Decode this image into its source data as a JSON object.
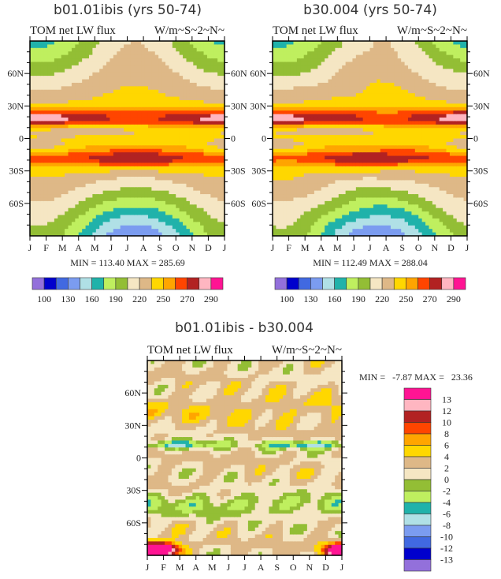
{
  "chart_data": [
    {
      "type": "heatmap",
      "title": "b01.01ibis (yrs 50-74)",
      "left_label": "TOM net LW flux",
      "right_label": "W/m~S~2~N~",
      "x_tick_labels": [
        "J",
        "F",
        "M",
        "A",
        "M",
        "J",
        "J",
        "A",
        "S",
        "O",
        "N",
        "D",
        "J"
      ],
      "y_tick_labels": [
        "60N",
        "30N",
        "0",
        "30S",
        "60S"
      ],
      "ylim": [
        -90,
        90
      ],
      "min_max_text": "MIN = 113.40 MAX = 285.69",
      "min": 113.4,
      "max": 285.69,
      "levels": [
        100,
        115,
        130,
        145,
        160,
        175,
        190,
        205,
        220,
        235,
        250,
        260,
        270,
        280,
        290
      ],
      "colorbar_labels": [
        "100",
        "130",
        "160",
        "190",
        "220",
        "250",
        "270",
        "290"
      ],
      "colorbar_orientation": "horizontal"
    },
    {
      "type": "heatmap",
      "title": "b30.004 (yrs 50-74)",
      "left_label": "TOM net LW flux",
      "right_label": "W/m~S~2~N~",
      "x_tick_labels": [
        "J",
        "F",
        "M",
        "A",
        "M",
        "J",
        "J",
        "A",
        "S",
        "O",
        "N",
        "D",
        "J"
      ],
      "y_tick_labels": [
        "60N",
        "30N",
        "0",
        "30S",
        "60S"
      ],
      "ylim": [
        -90,
        90
      ],
      "min_max_text": "MIN = 112.49 MAX = 288.04",
      "min": 112.49,
      "max": 288.04,
      "levels": [
        100,
        115,
        130,
        145,
        160,
        175,
        190,
        205,
        220,
        235,
        250,
        260,
        270,
        280,
        290
      ],
      "colorbar_labels": [
        "100",
        "130",
        "160",
        "190",
        "220",
        "250",
        "270",
        "290"
      ],
      "colorbar_orientation": "horizontal"
    },
    {
      "type": "heatmap",
      "title": "b01.01ibis - b30.004",
      "left_label": "TOM net LW flux",
      "right_label": "W/m~S~2~N~",
      "x_tick_labels": [
        "J",
        "F",
        "M",
        "A",
        "M",
        "J",
        "J",
        "A",
        "S",
        "O",
        "N",
        "D",
        "J"
      ],
      "y_tick_labels": [
        "60N",
        "30N",
        "0",
        "30S",
        "60S"
      ],
      "ylim": [
        -90,
        90
      ],
      "min_max_text": "MIN =   -7.87 MAX =   23.36",
      "min": -7.87,
      "max": 23.36,
      "levels": [
        -13,
        -12,
        -10,
        -8,
        -6,
        -4,
        -2,
        0,
        2,
        4,
        6,
        8,
        10,
        12,
        13
      ],
      "colorbar_labels": [
        "13",
        "12",
        "10",
        "8",
        "6",
        "4",
        "2",
        "0",
        "-2",
        "-4",
        "-6",
        "-8",
        "-10",
        "-12",
        "-13"
      ],
      "colorbar_orientation": "vertical"
    }
  ],
  "colors": [
    "#9370DB",
    "#0000CD",
    "#4169E1",
    "#7B9CF0",
    "#B0E0E6",
    "#20B2AA",
    "#BFEF5F",
    "#93BE35",
    "#F5E6C3",
    "#DEB887",
    "#FFD700",
    "#FFA500",
    "#FF4500",
    "#B22222",
    "#FFB6C1",
    "#FF1493"
  ]
}
